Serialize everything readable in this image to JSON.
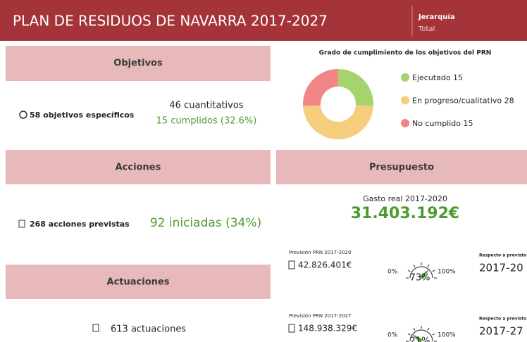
{
  "header": {
    "title": "PLAN DE RESIDUOS DE NAVARRA 2017-2027",
    "filter_label": "Jerarquía",
    "filter_value": "Total"
  },
  "objetivos": {
    "heading": "Objetivos",
    "total": "58 objetivos específicos",
    "cuantitativos": "46 cuantitativos",
    "cumplidos": "15 cumplidos (32.6%)"
  },
  "donut": {
    "title": "Grado de cumplimiento de los objetivos del PRN",
    "labels": [
      "Ejecutado 15",
      "En progreso/cualitativo 28",
      "No cumplido 15"
    ],
    "values": [
      15,
      28,
      15
    ],
    "colors": [
      "#a5d46e",
      "#f6cd7d",
      "#f28585"
    ]
  },
  "acciones": {
    "heading": "Acciones",
    "total": "268 acciones previstas",
    "iniciadas": "92 iniciadas (34%)"
  },
  "actuaciones": {
    "heading": "Actuaciones",
    "total": "613 actuaciones"
  },
  "presupuesto": {
    "heading": "Presupuesto",
    "gasto_label": "Gasto real 2017-2020",
    "gasto": "31.403.192€",
    "gauges": [
      {
        "prevision_label": "Previsión PRN 2017-2020",
        "prevision": "42.826.401€",
        "min": "0%",
        "max": "100%",
        "pct": 73,
        "pct_label": "73%",
        "respecto": "Respecto a previsto",
        "periodo": "2017-20"
      },
      {
        "prevision_label": "Previsión PRN 2017-2027",
        "prevision": "148.938.329€",
        "min": "0%",
        "max": "100%",
        "pct": 21,
        "pct_label": "21%",
        "respecto": "Respecto a previsto",
        "periodo": "2017-27"
      }
    ]
  }
}
